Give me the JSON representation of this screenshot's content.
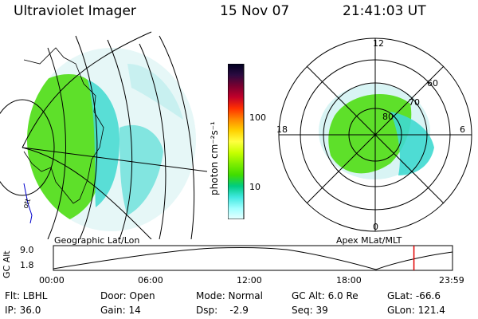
{
  "header": {
    "title": "Ultraviolet Imager",
    "date": "15 Nov 07",
    "time": "21:41:03 UT"
  },
  "colorbar": {
    "unit": "photon cm⁻²s⁻¹",
    "ticks": [
      "100",
      "10"
    ],
    "colors": [
      "#000020",
      "#2a0a40",
      "#7a0030",
      "#c0002a",
      "#ff3000",
      "#ff8800",
      "#ffd000",
      "#ffff40",
      "#c8ff00",
      "#80ee00",
      "#40dd00",
      "#00cc80",
      "#40e8e0",
      "#a0ffff",
      "#e8ffff"
    ]
  },
  "geo_panel": {
    "label": "Geographic Lat/Lon",
    "side_text": "ott",
    "colors": {
      "aurora": "#5ee02a",
      "cyan": "#3fd9d0",
      "pale": "#c8f0f0",
      "coast": "#0000cc"
    }
  },
  "polar_panel": {
    "label": "Apex MLat/MLT",
    "mlt_labels": {
      "top": "12",
      "left": "18",
      "right": "6",
      "bottom": "0"
    },
    "mlat_labels": [
      "60",
      "70",
      "80"
    ]
  },
  "altitude_plot": {
    "ylabel": "GC Alt",
    "yticks": [
      "9.0",
      "1.8"
    ],
    "xticks": [
      "00:00",
      "06:00",
      "12:00",
      "18:00",
      "23:59"
    ],
    "marker_color": "#e00000",
    "marker_time_hours": 21.68
  },
  "info": {
    "row1": {
      "flt": "Flt: LBHL",
      "door": "Door: Open",
      "mode": "Mode: Normal",
      "gcalt": "GC Alt: 6.0 Re",
      "glat": "GLat: -66.6"
    },
    "row2": {
      "ip": "IP: 36.0",
      "gain": "Gain: 14",
      "dsp": "Dsp:    -2.9",
      "seq": "Seq: 39",
      "glon": "GLon: 121.4"
    }
  }
}
